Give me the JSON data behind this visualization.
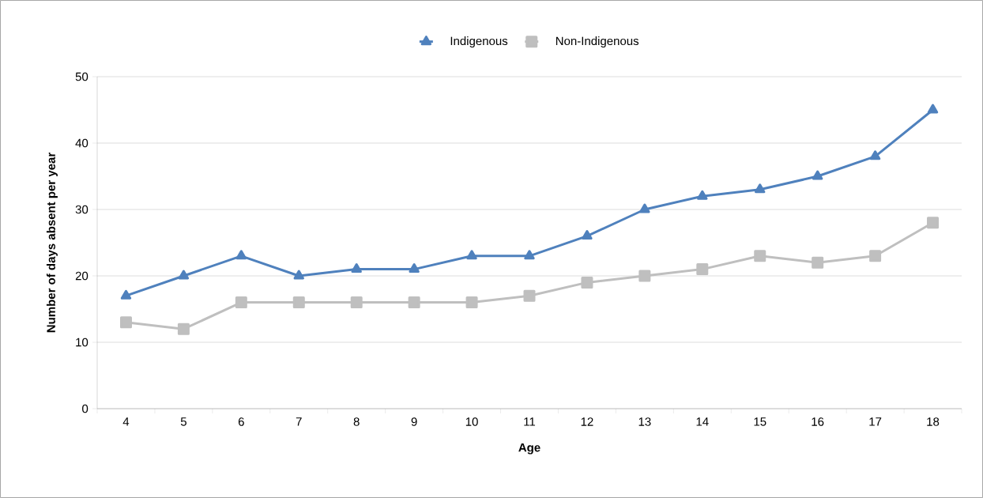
{
  "chart_data": {
    "type": "line",
    "xlabel": "Age",
    "ylabel": "Number of  days absent per year",
    "categories": [
      "4",
      "5",
      "6",
      "7",
      "8",
      "9",
      "10",
      "11",
      "12",
      "13",
      "14",
      "15",
      "16",
      "17",
      "18"
    ],
    "series": [
      {
        "name": "Indigenous",
        "color": "#4f81bd",
        "marker": "triangle",
        "values": [
          17,
          20,
          23,
          20,
          21,
          21,
          23,
          23,
          26,
          30,
          32,
          33,
          35,
          38,
          45
        ]
      },
      {
        "name": "Non-Indigenous",
        "color": "#bfbfbf",
        "marker": "square",
        "values": [
          13,
          12,
          16,
          16,
          16,
          16,
          16,
          17,
          19,
          20,
          21,
          23,
          22,
          23,
          28
        ]
      }
    ],
    "ylim": [
      0,
      50
    ],
    "yticks": [
      0,
      10,
      20,
      30,
      40,
      50
    ],
    "grid": "y",
    "legend": "top",
    "line_style": "solid"
  }
}
